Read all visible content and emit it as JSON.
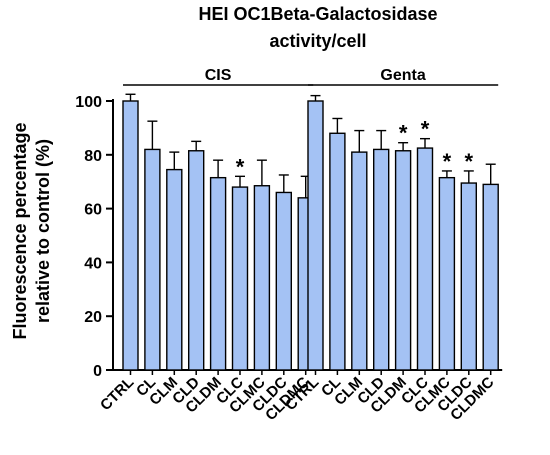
{
  "chart_data": {
    "type": "bar",
    "title_lines": [
      "HEI OC1Beta-Galactosidase",
      "activity/cell"
    ],
    "ylabel_lines": [
      "Fluorescence percentage",
      "relative to control (%)"
    ],
    "ylim": [
      0,
      100
    ],
    "yticks": [
      0,
      20,
      40,
      60,
      80,
      100
    ],
    "bar_color": "#a4c2f4",
    "groups": [
      {
        "name": "CIS",
        "categories": [
          "CTRL",
          "CL",
          "CLM",
          "CLD",
          "CLDM",
          "CLC",
          "CLMC",
          "CLDC",
          "CLDMC"
        ],
        "values": [
          100,
          82,
          74.5,
          81.5,
          71.5,
          68,
          68.5,
          66,
          64
        ],
        "errors": [
          2.5,
          10.5,
          6.5,
          3.5,
          6.5,
          4,
          9.5,
          6.5,
          8
        ],
        "significant": [
          false,
          false,
          false,
          false,
          false,
          true,
          false,
          false,
          false
        ]
      },
      {
        "name": "Genta",
        "categories": [
          "CTRL",
          "CL",
          "CLM",
          "CLD",
          "CLDM",
          "CLC",
          "CLMC",
          "CLDC",
          "CLDMC"
        ],
        "values": [
          100,
          88,
          81,
          82,
          81.5,
          82.5,
          71.5,
          69.5,
          69
        ],
        "errors": [
          2,
          5.5,
          8,
          7,
          3,
          3.5,
          2.5,
          4.5,
          7.5
        ],
        "significant": [
          false,
          false,
          false,
          false,
          true,
          true,
          true,
          true,
          false
        ]
      }
    ],
    "significance_marker": "*"
  }
}
